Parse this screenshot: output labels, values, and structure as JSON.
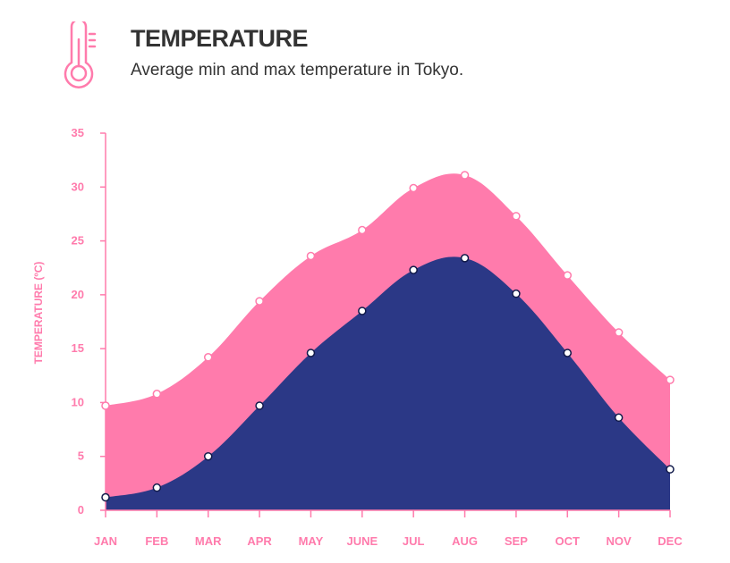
{
  "header": {
    "title": "TEMPERATURE",
    "subtitle": "Average min and max temperature in Tokyo.",
    "icon": "thermometer-icon"
  },
  "colors": {
    "max_area": "#ff7bac",
    "min_area": "#2b3886",
    "axis": "#ff7bac",
    "title_text": "#333333"
  },
  "chart_data": {
    "type": "area",
    "title": "",
    "xlabel": "",
    "ylabel": "TEMPERATURE (ºC)",
    "ylim": [
      0,
      35
    ],
    "yticks": [
      0,
      5,
      10,
      15,
      20,
      25,
      30,
      35
    ],
    "categories": [
      "JAN",
      "FEB",
      "MAR",
      "APR",
      "MAY",
      "JUNE",
      "JUL",
      "AUG",
      "SEP",
      "OCT",
      "NOV",
      "DEC"
    ],
    "grid": false,
    "legend": "none",
    "series": [
      {
        "key": "max",
        "values": [
          9.7,
          10.8,
          14.2,
          19.4,
          23.6,
          26.0,
          29.9,
          31.1,
          27.3,
          21.8,
          16.5,
          12.1
        ]
      },
      {
        "key": "min",
        "values": [
          1.2,
          2.1,
          5.0,
          9.7,
          14.6,
          18.5,
          22.3,
          23.4,
          20.1,
          14.6,
          8.6,
          3.8
        ]
      }
    ]
  }
}
